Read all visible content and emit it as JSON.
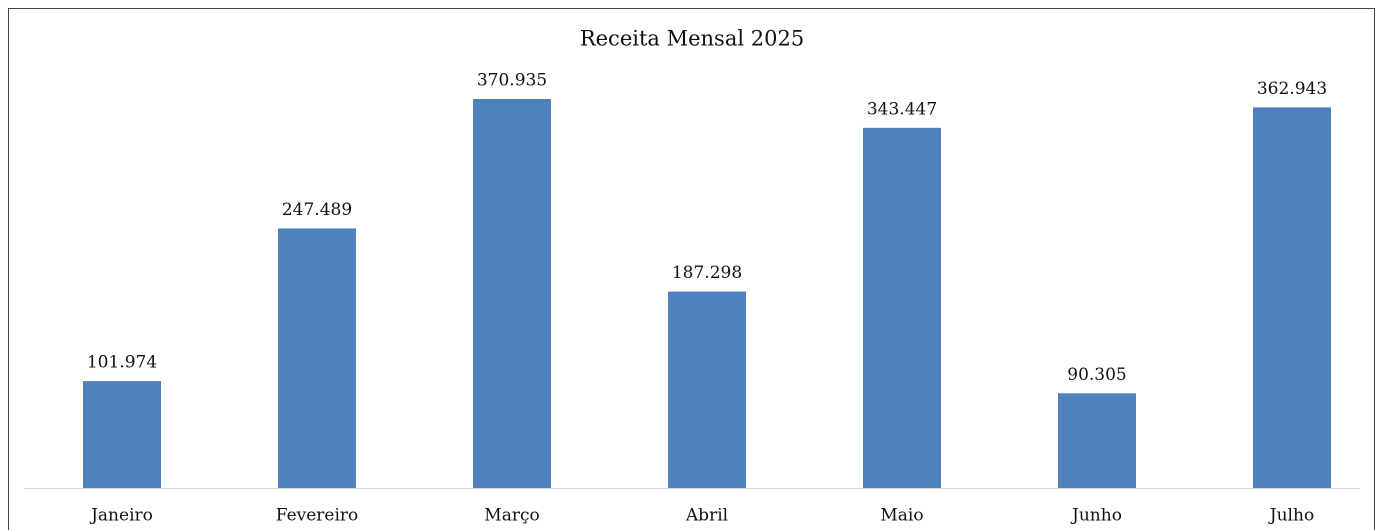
{
  "chart_data": {
    "type": "bar",
    "title": "Receita Mensal 2025",
    "categories": [
      "Janeiro",
      "Fevereiro",
      "Março",
      "Abril",
      "Maio",
      "Junho",
      "Julho"
    ],
    "values": [
      101974,
      247489,
      370935,
      187298,
      343447,
      90305,
      362943
    ],
    "value_labels": [
      "101.974",
      "247.489",
      "370.935",
      "187.298",
      "343.447",
      "90.305",
      "362.943"
    ],
    "color": "#4f81bd"
  }
}
